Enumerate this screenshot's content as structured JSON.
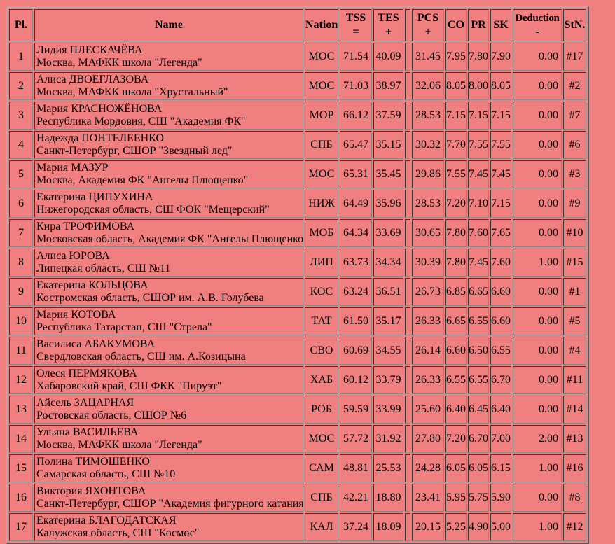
{
  "page": {
    "background_color": "#f08080",
    "border_color": "#8a8a8a",
    "text_color": "#000000"
  },
  "table": {
    "headers": {
      "pl": "Pl.",
      "name": "Name",
      "nation": "Nation",
      "tss": [
        "TSS",
        "="
      ],
      "tes": [
        "TES",
        "+"
      ],
      "pcs": [
        "PCS",
        "+"
      ],
      "co": "CO",
      "pr": "PR",
      "sk": "SK",
      "deduction": [
        "Deduction",
        "-"
      ],
      "stn": "StN."
    },
    "rows": [
      {
        "pl": "1",
        "name": "Лидия ПЛЕСКАЧЁВА",
        "club": "Москва, МАФКК школа \"Легенда\"",
        "nation": "МОС",
        "tss": "71.54",
        "tes": "40.09",
        "pcs": "31.45",
        "co": "7.95",
        "pr": "7.80",
        "sk": "7.90",
        "deduction": "0.00",
        "stn": "#17"
      },
      {
        "pl": "2",
        "name": "Алиса ДВОЕГЛАЗОВА",
        "club": "Москва, МАФКК школа \"Хрустальный\"",
        "nation": "МОС",
        "tss": "71.03",
        "tes": "38.97",
        "pcs": "32.06",
        "co": "8.05",
        "pr": "8.00",
        "sk": "8.05",
        "deduction": "0.00",
        "stn": "#2"
      },
      {
        "pl": "3",
        "name": "Мария КРАСНОЖЁНОВА",
        "club": "Республика Мордовия, СШ \"Академия ФК\"",
        "nation": "МОР",
        "tss": "66.12",
        "tes": "37.59",
        "pcs": "28.53",
        "co": "7.15",
        "pr": "7.15",
        "sk": "7.15",
        "deduction": "0.00",
        "stn": "#7"
      },
      {
        "pl": "4",
        "name": "Надежда ПОНТЕЛЕЕНКО",
        "club": "Санкт-Петербург, СШОР \"Звездный лед\"",
        "nation": "СПБ",
        "tss": "65.47",
        "tes": "35.15",
        "pcs": "30.32",
        "co": "7.70",
        "pr": "7.55",
        "sk": "7.55",
        "deduction": "0.00",
        "stn": "#6"
      },
      {
        "pl": "5",
        "name": "Мария МАЗУР",
        "club": "Москва, Академия ФК \"Ангелы Плющенко\"",
        "nation": "МОС",
        "tss": "65.31",
        "tes": "35.45",
        "pcs": "29.86",
        "co": "7.55",
        "pr": "7.45",
        "sk": "7.45",
        "deduction": "0.00",
        "stn": "#3"
      },
      {
        "pl": "6",
        "name": "Екатерина ЦИПУХИНА",
        "club": "Нижегородская область, СШ ФОК \"Мещерский\"",
        "nation": "НИЖ",
        "tss": "64.49",
        "tes": "35.96",
        "pcs": "28.53",
        "co": "7.20",
        "pr": "7.10",
        "sk": "7.15",
        "deduction": "0.00",
        "stn": "#9"
      },
      {
        "pl": "7",
        "name": "Кира ТРОФИМОВА",
        "club": "Московская область, Академия ФК \"Ангелы Плющенко\"",
        "nation": "МОБ",
        "tss": "64.34",
        "tes": "33.69",
        "pcs": "30.65",
        "co": "7.80",
        "pr": "7.60",
        "sk": "7.65",
        "deduction": "0.00",
        "stn": "#10"
      },
      {
        "pl": "8",
        "name": "Алиса ЮРОВА",
        "club": "Липецкая область, СШ №11",
        "nation": "ЛИП",
        "tss": "63.73",
        "tes": "34.34",
        "pcs": "30.39",
        "co": "7.80",
        "pr": "7.45",
        "sk": "7.60",
        "deduction": "1.00",
        "stn": "#15"
      },
      {
        "pl": "9",
        "name": "Екатерина КОЛЬЦОВА",
        "club": "Костромская область, СШОР им. А.В. Голубева",
        "nation": "КОС",
        "tss": "63.24",
        "tes": "36.51",
        "pcs": "26.73",
        "co": "6.85",
        "pr": "6.65",
        "sk": "6.60",
        "deduction": "0.00",
        "stn": "#1"
      },
      {
        "pl": "10",
        "name": "Мария КОТОВА",
        "club": "Республика Татарстан, СШ \"Стрела\"",
        "nation": "ТАТ",
        "tss": "61.50",
        "tes": "35.17",
        "pcs": "26.33",
        "co": "6.65",
        "pr": "6.55",
        "sk": "6.60",
        "deduction": "0.00",
        "stn": "#5"
      },
      {
        "pl": "11",
        "name": "Василиса АБАКУМОВА",
        "club": "Свердловская область, СШ им. А.Козицына",
        "nation": "СВО",
        "tss": "60.69",
        "tes": "34.55",
        "pcs": "26.14",
        "co": "6.60",
        "pr": "6.50",
        "sk": "6.55",
        "deduction": "0.00",
        "stn": "#4"
      },
      {
        "pl": "12",
        "name": "Олеся ПЕРМЯКОВА",
        "club": "Хабаровский край, СШ ФКК \"Пируэт\"",
        "nation": "ХАБ",
        "tss": "60.12",
        "tes": "33.79",
        "pcs": "26.33",
        "co": "6.55",
        "pr": "6.55",
        "sk": "6.70",
        "deduction": "0.00",
        "stn": "#11"
      },
      {
        "pl": "13",
        "name": "Айсель ЗАЦАРНАЯ",
        "club": "Ростовская область, СШОР №6",
        "nation": "РОБ",
        "tss": "59.59",
        "tes": "33.99",
        "pcs": "25.60",
        "co": "6.40",
        "pr": "6.45",
        "sk": "6.40",
        "deduction": "0.00",
        "stn": "#14"
      },
      {
        "pl": "14",
        "name": "Ульяна ВАСИЛЬЕВА",
        "club": "Москва, МАФКК школа \"Легенда\"",
        "nation": "МОС",
        "tss": "57.72",
        "tes": "31.92",
        "pcs": "27.80",
        "co": "7.20",
        "pr": "6.70",
        "sk": "7.00",
        "deduction": "2.00",
        "stn": "#13"
      },
      {
        "pl": "15",
        "name": "Полина ТИМОШЕНКО",
        "club": "Самарская область, СШ №10",
        "nation": "САМ",
        "tss": "48.81",
        "tes": "25.53",
        "pcs": "24.28",
        "co": "6.05",
        "pr": "6.05",
        "sk": "6.15",
        "deduction": "1.00",
        "stn": "#16"
      },
      {
        "pl": "16",
        "name": "Виктория ЯХОНТОВА",
        "club": "Санкт-Петербург, СШОР \"Академия фигурного катания\"",
        "nation": "СПБ",
        "tss": "42.21",
        "tes": "18.80",
        "pcs": "23.41",
        "co": "5.95",
        "pr": "5.75",
        "sk": "5.90",
        "deduction": "0.00",
        "stn": "#8"
      },
      {
        "pl": "17",
        "name": "Екатерина БЛАГОДАТСКАЯ",
        "club": "Калужская область, СШ \"Космос\"",
        "nation": "КАЛ",
        "tss": "37.24",
        "tes": "18.09",
        "pcs": "20.15",
        "co": "5.25",
        "pr": "4.90",
        "sk": "5.00",
        "deduction": "1.00",
        "stn": "#12"
      }
    ]
  }
}
